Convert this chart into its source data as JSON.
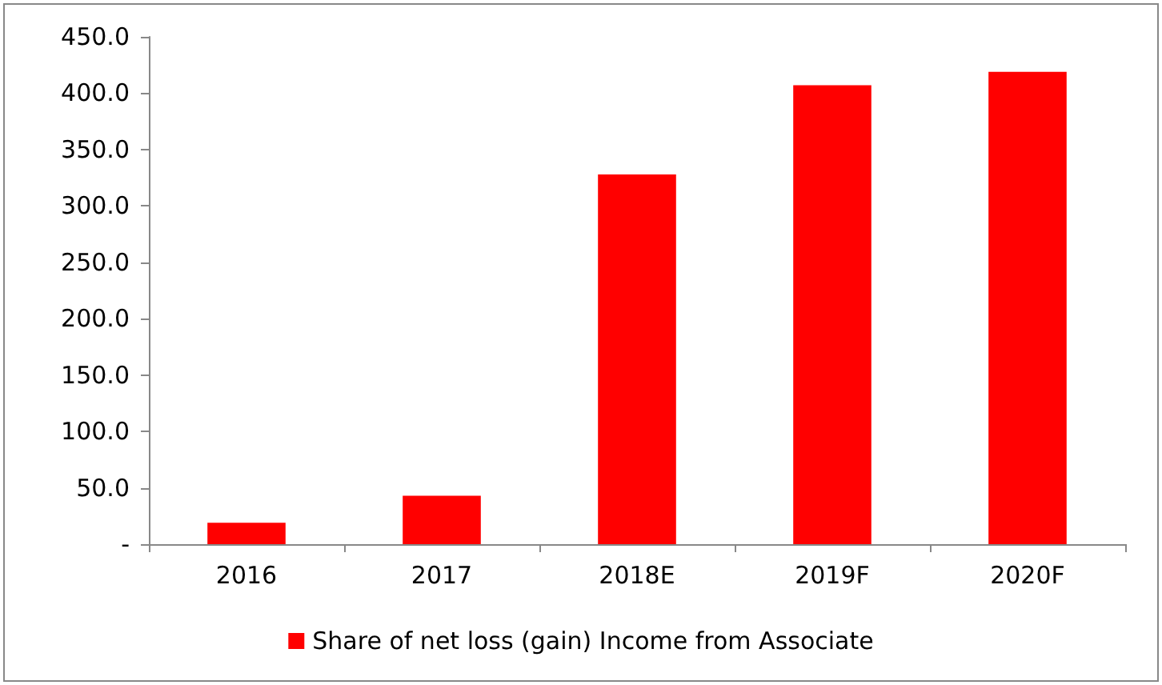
{
  "chart_data": {
    "type": "bar",
    "categories": [
      "2016",
      "2017",
      "2018E",
      "2019F",
      "2020F"
    ],
    "series": [
      {
        "name": "Share of net loss (gain) Income from Associate",
        "color": "#ff0000",
        "values": [
          19,
          43,
          328,
          407,
          419
        ]
      }
    ],
    "ylim": [
      0,
      450
    ],
    "yticks": [
      {
        "value": 0,
        "label": "-"
      },
      {
        "value": 50,
        "label": "50.0"
      },
      {
        "value": 100,
        "label": "100.0"
      },
      {
        "value": 150,
        "label": "150.0"
      },
      {
        "value": 200,
        "label": "200.0"
      },
      {
        "value": 250,
        "label": "250.0"
      },
      {
        "value": 300,
        "label": "300.0"
      },
      {
        "value": 350,
        "label": "350.0"
      },
      {
        "value": 400,
        "label": "400.0"
      },
      {
        "value": 450,
        "label": "450.0"
      }
    ],
    "grid": false,
    "legend": "bottom"
  }
}
